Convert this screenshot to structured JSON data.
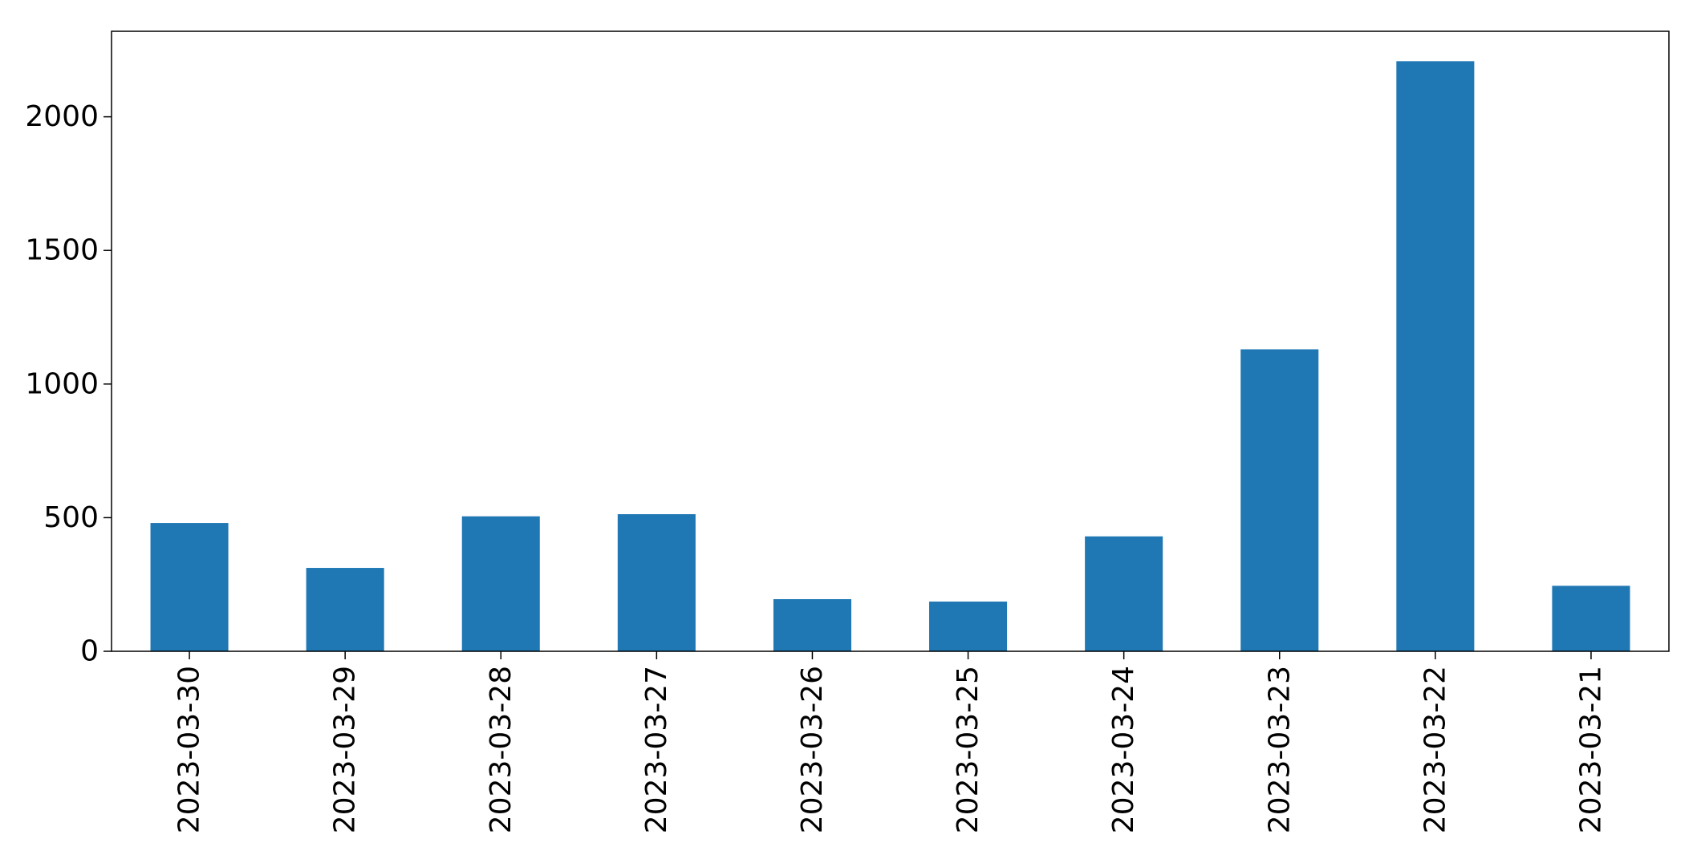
{
  "chart_data": {
    "type": "bar",
    "title": "",
    "xlabel": "",
    "ylabel": "",
    "categories": [
      "2023-03-30",
      "2023-03-29",
      "2023-03-28",
      "2023-03-27",
      "2023-03-26",
      "2023-03-25",
      "2023-03-24",
      "2023-03-23",
      "2023-03-22",
      "2023-03-21"
    ],
    "values": [
      480,
      312,
      505,
      513,
      195,
      186,
      430,
      1130,
      2208,
      245
    ],
    "ylim": [
      0,
      2320
    ],
    "yticks": [
      0,
      500,
      1000,
      1500,
      2000
    ],
    "grid": false,
    "legend": "none",
    "bar_color": "#1f77b4"
  }
}
